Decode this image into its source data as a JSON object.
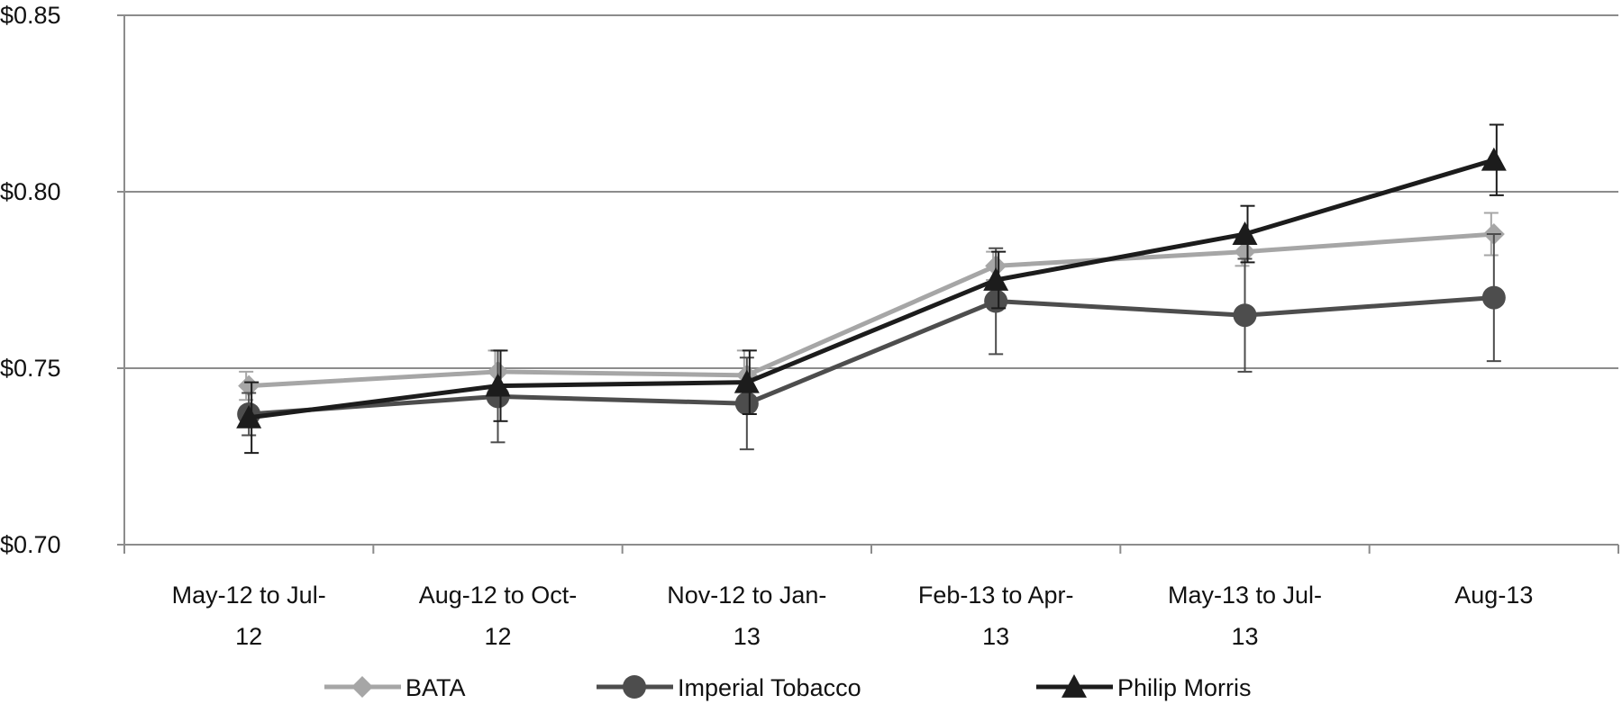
{
  "chart_data": {
    "type": "line",
    "title": "",
    "xlabel": "",
    "ylabel": "",
    "categories": [
      [
        "May-12 to Jul-",
        "12"
      ],
      [
        "Aug-12 to Oct-",
        "12"
      ],
      [
        "Nov-12 to Jan-",
        "13"
      ],
      [
        "Feb-13 to Apr-",
        "13"
      ],
      [
        "May-13 to Jul-",
        "13"
      ],
      [
        "Aug-13"
      ]
    ],
    "ylim": [
      0.7,
      0.85
    ],
    "yticks": [
      0.7,
      0.75,
      0.8,
      0.85
    ],
    "ytick_labels": [
      "$0.70",
      "$0.75",
      "$0.80",
      "$0.85"
    ],
    "grid": true,
    "legend_position": "bottom",
    "series": [
      {
        "name": "BATA",
        "marker": "diamond",
        "color": "#a6a6a6",
        "values": [
          0.745,
          0.749,
          0.748,
          0.779,
          0.783,
          0.788
        ],
        "error": [
          0.004,
          0.006,
          0.007,
          0.004,
          0.004,
          0.006
        ]
      },
      {
        "name": "Imperial Tobacco",
        "marker": "circle",
        "color": "#4d4d4d",
        "values": [
          0.737,
          0.742,
          0.74,
          0.769,
          0.765,
          0.77
        ],
        "error": [
          0.006,
          0.013,
          0.013,
          0.015,
          0.016,
          0.018
        ]
      },
      {
        "name": "Philip Morris",
        "marker": "triangle",
        "color": "#1c1c1c",
        "values": [
          0.736,
          0.745,
          0.746,
          0.775,
          0.788,
          0.809
        ],
        "error": [
          0.01,
          0.01,
          0.009,
          0.008,
          0.008,
          0.01
        ]
      }
    ]
  }
}
